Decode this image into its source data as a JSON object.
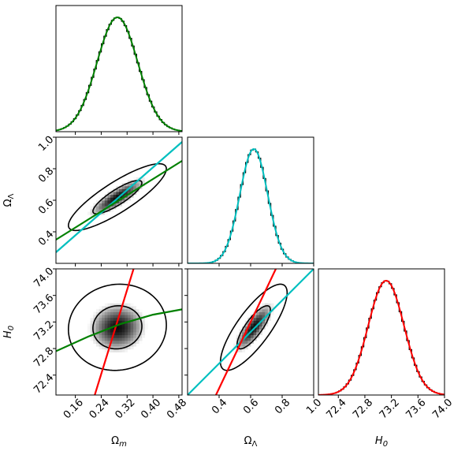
{
  "chart_data": {
    "type": "corner",
    "parameters": [
      {
        "key": "om",
        "label_base": "Ω",
        "label_sub": "m",
        "range": [
          0.1,
          0.49
        ],
        "ticks": [
          0.16,
          0.24,
          0.32,
          0.4,
          0.48
        ],
        "tick_labels": [
          "0.16",
          "0.24",
          "0.32",
          "0.40",
          "0.48"
        ],
        "mean": 0.29,
        "sd": 0.063
      },
      {
        "key": "ol",
        "label_base": "Ω",
        "label_sub": "Λ",
        "range": [
          0.2,
          1.0
        ],
        "ticks": [
          0.4,
          0.6,
          0.8,
          1.0
        ],
        "tick_labels": [
          "0.4",
          "0.6",
          "0.8",
          "1.0"
        ],
        "mean": 0.62,
        "sd": 0.088
      },
      {
        "key": "h0",
        "label_base": "H",
        "label_sub": "0",
        "range": [
          72.1,
          74.0
        ],
        "ticks": [
          72.4,
          72.8,
          73.2,
          73.6,
          74.0
        ],
        "tick_labels": [
          "72.4",
          "72.8",
          "73.2",
          "73.6",
          "74.0"
        ],
        "mean": 73.12,
        "sd": 0.27
      }
    ],
    "diagonal_fit_colors": [
      "#008000",
      "#00bfbf",
      "#ff0000"
    ],
    "correlations": {
      "om_ol": 0.85,
      "om_h0": 0.05,
      "ol_h0": 0.8
    },
    "lines": [
      {
        "panel": "om_ol",
        "color": "#00bfbf",
        "points": [
          [
            0.1,
            0.27
          ],
          [
            0.49,
            0.97
          ]
        ]
      },
      {
        "panel": "om_ol",
        "color": "#008000",
        "points": [
          [
            0.1,
            0.35
          ],
          [
            0.49,
            0.85
          ]
        ]
      },
      {
        "panel": "om_h0",
        "color": "#ff0000",
        "points": [
          [
            0.22,
            72.1
          ],
          [
            0.34,
            74.0
          ]
        ]
      },
      {
        "panel": "om_h0",
        "color": "#008000",
        "curve": [
          [
            0.1,
            72.76
          ],
          [
            0.2,
            72.98
          ],
          [
            0.3,
            73.17
          ],
          [
            0.4,
            73.31
          ],
          [
            0.49,
            73.39
          ]
        ]
      },
      {
        "panel": "ol_h0",
        "color": "#00bfbf",
        "points": [
          [
            0.2,
            72.1
          ],
          [
            1.0,
            74.0
          ]
        ]
      },
      {
        "panel": "ol_h0",
        "color": "#ff0000",
        "points": [
          [
            0.38,
            72.1
          ],
          [
            0.76,
            74.0
          ]
        ]
      }
    ],
    "contour_levels_sigma": [
      1,
      2
    ],
    "grid": false,
    "legend": "none"
  }
}
